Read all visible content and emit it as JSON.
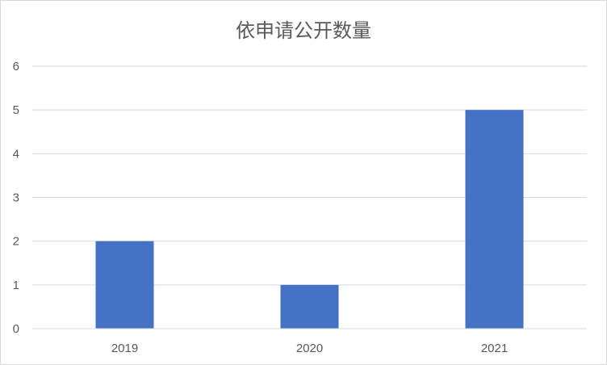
{
  "chart_data": {
    "type": "bar",
    "title": "依申请公开数量",
    "categories": [
      "2019",
      "2020",
      "2021"
    ],
    "values": [
      2,
      1,
      5
    ],
    "xlabel": "",
    "ylabel": "",
    "ylim": [
      0,
      6
    ],
    "yticks": [
      "0",
      "1",
      "2",
      "3",
      "4",
      "5",
      "6"
    ],
    "grid": true,
    "legend": "none",
    "bar_color": "#4472c4",
    "grid_color": "#d9d9d9"
  }
}
